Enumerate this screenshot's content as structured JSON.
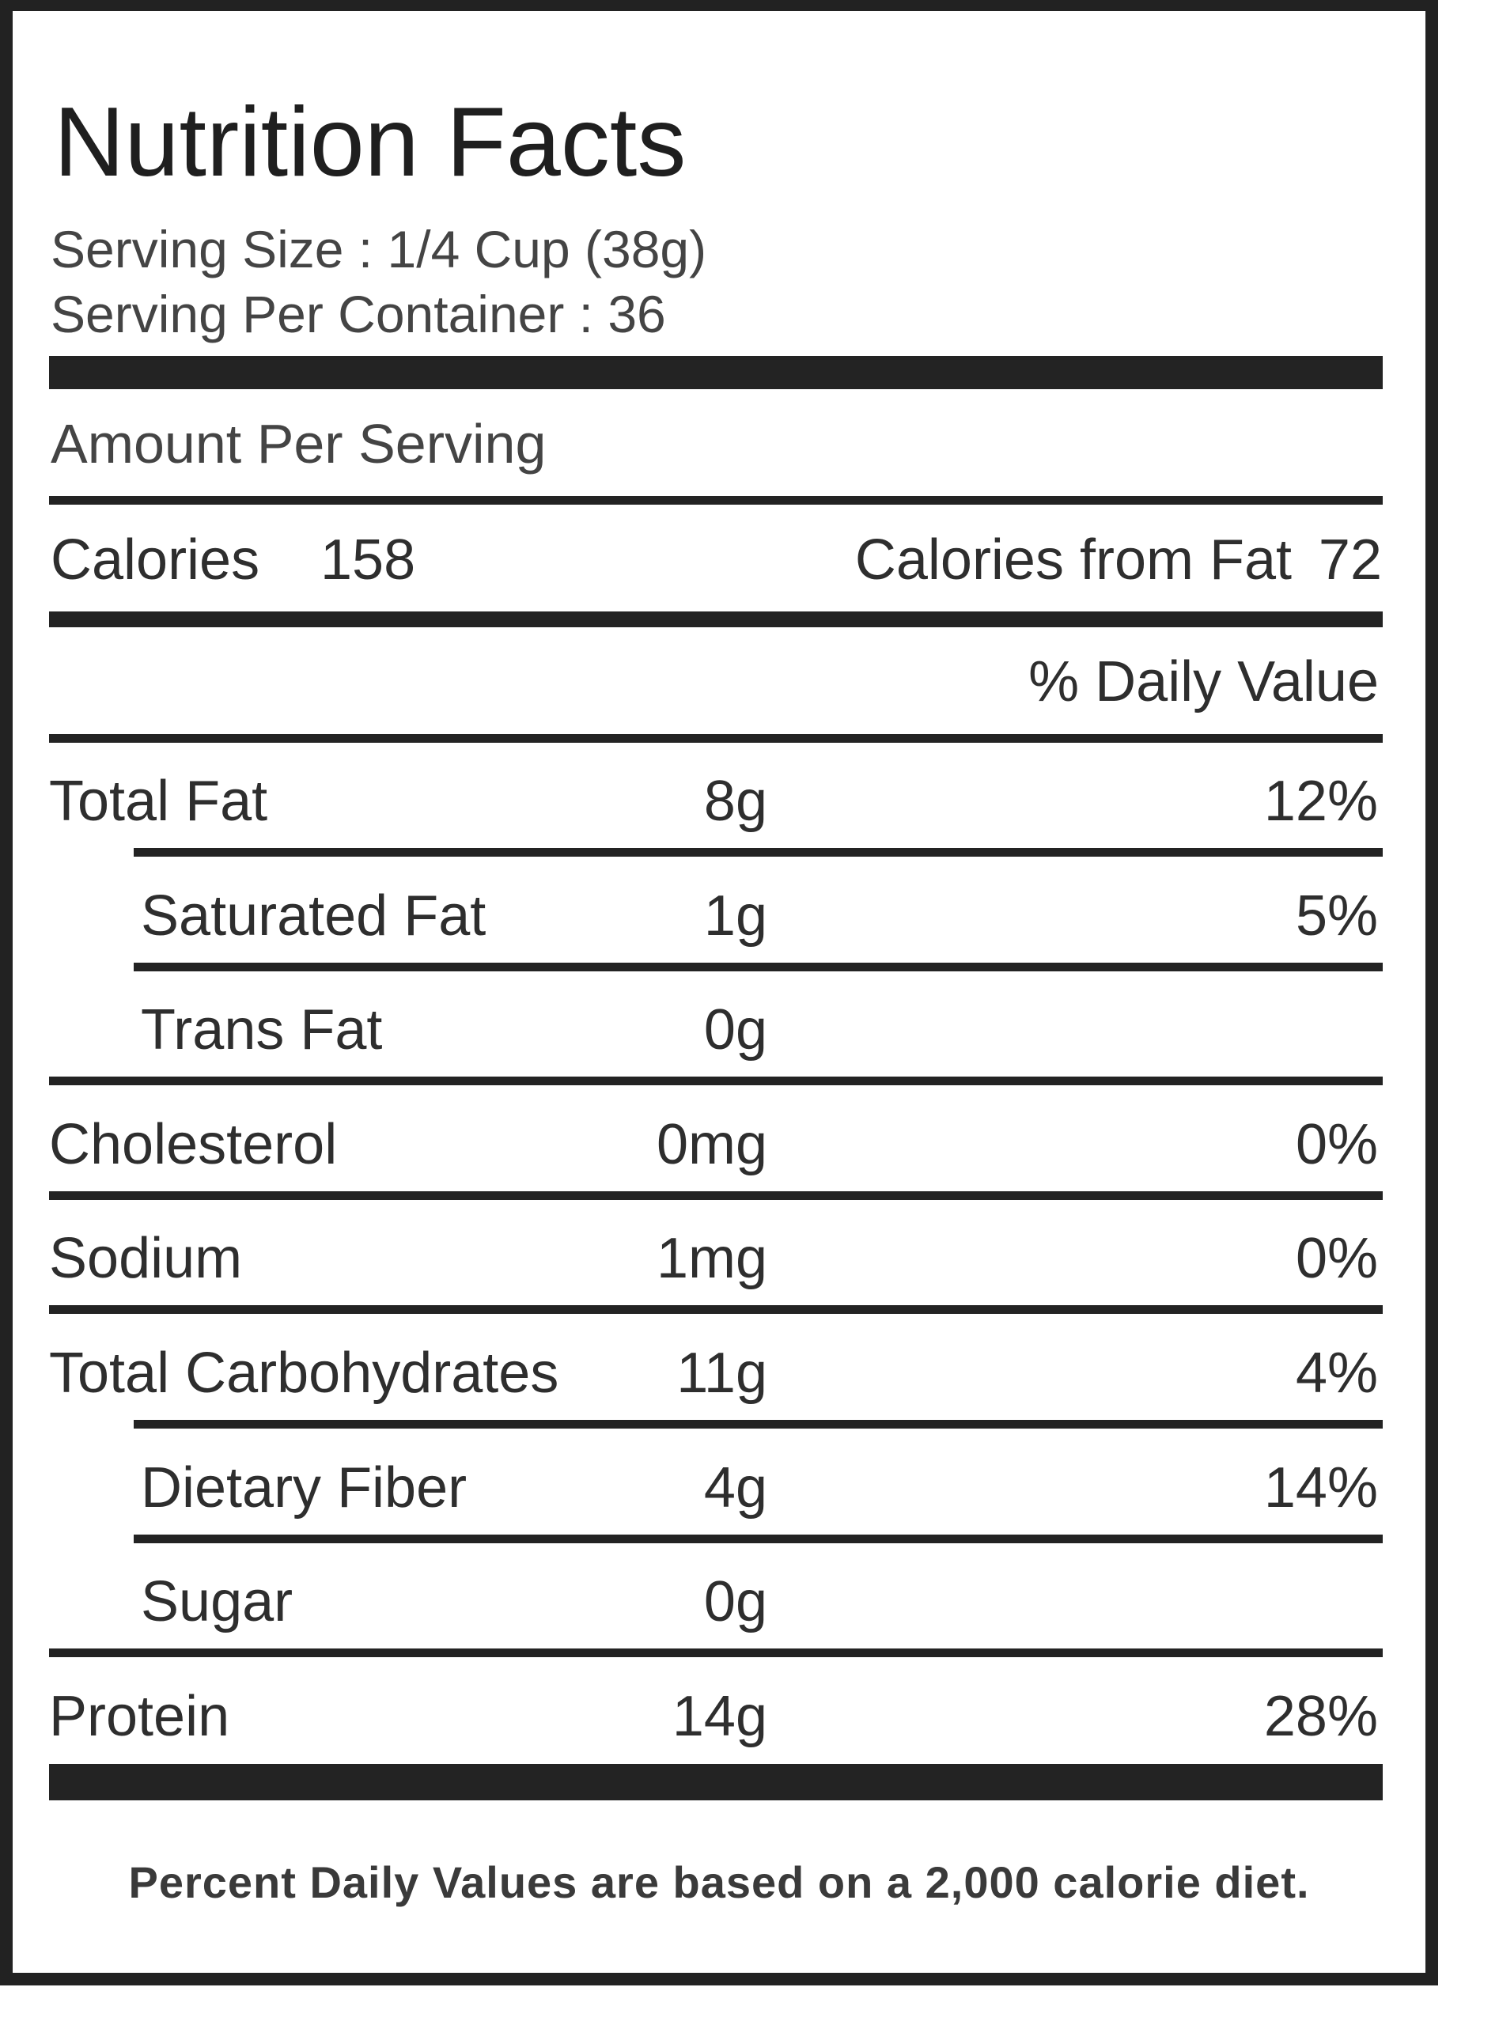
{
  "title": "Nutrition Facts",
  "serving_size": "Serving Size : 1/4 Cup (38g)",
  "servings_per_container": "Serving Per Container : 36",
  "amount_per_serving": "Amount Per Serving",
  "calories": {
    "label": "Calories",
    "value": "158"
  },
  "calories_from_fat": {
    "label": "Calories from Fat",
    "value": "72"
  },
  "daily_value_header": "% Daily Value",
  "nutrients": [
    {
      "name": "Total Fat",
      "amount": "8g",
      "percent": "12%"
    },
    {
      "name": "Saturated Fat",
      "amount": "1g",
      "percent": "5%"
    },
    {
      "name": "Trans Fat",
      "amount": "0g",
      "percent": ""
    },
    {
      "name": "Cholesterol",
      "amount": "0mg",
      "percent": "0%"
    },
    {
      "name": "Sodium",
      "amount": "1mg",
      "percent": "0%"
    },
    {
      "name": "Total Carbohydrates",
      "amount": "11g",
      "percent": "4%"
    },
    {
      "name": "Dietary Fiber",
      "amount": "4g",
      "percent": "14%"
    },
    {
      "name": "Sugar",
      "amount": "0g",
      "percent": ""
    },
    {
      "name": "Protein",
      "amount": "14g",
      "percent": "28%"
    }
  ],
  "footnote": "Percent Daily Values are based on a 2,000 calorie diet."
}
